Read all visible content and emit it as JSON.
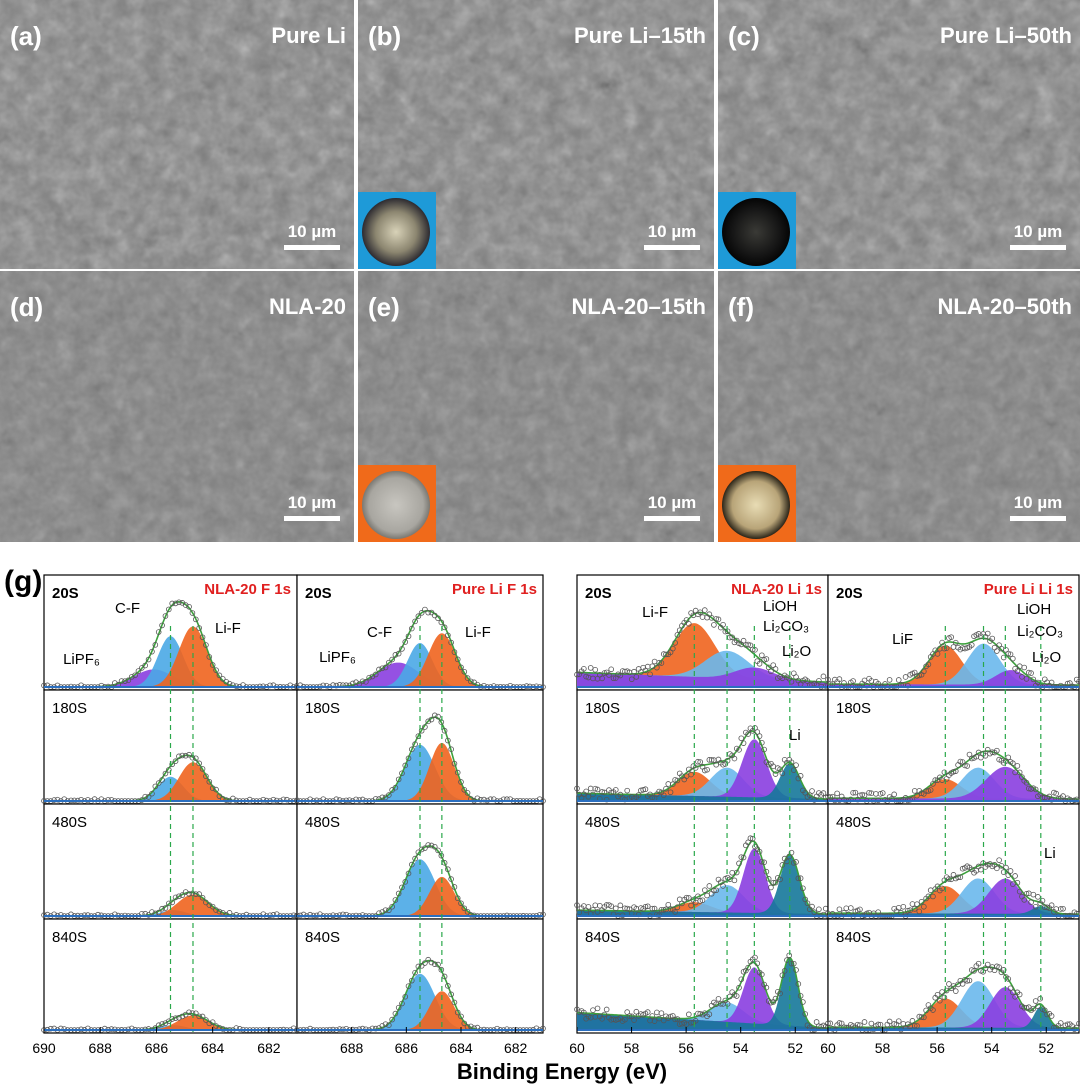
{
  "figure": {
    "panels": [
      {
        "label": "(a)",
        "title": "Pure Li",
        "scale": "10 µm",
        "inset": "none"
      },
      {
        "label": "(b)",
        "title": "Pure Li–15th",
        "scale": "10 µm",
        "inset": "blue"
      },
      {
        "label": "(c)",
        "title": "Pure Li–50th",
        "scale": "10 µm",
        "inset": "blue"
      },
      {
        "label": "(d)",
        "title": "NLA-20",
        "scale": "10 µm",
        "inset": "none"
      },
      {
        "label": "(e)",
        "title": "NLA-20–15th",
        "scale": "10 µm",
        "inset": "orange"
      },
      {
        "label": "(f)",
        "title": "NLA-20–50th",
        "scale": "10 µm",
        "inset": "orange"
      }
    ],
    "g_label": "(g)",
    "xlabel": "Binding Energy (eV)",
    "colors": {
      "lif": "#f0641e",
      "cf": "#4aa8e6",
      "lioh": "#6ab8ec",
      "lipf6": "#8a3ee0",
      "li2o": "#8a3ee0",
      "li": "#15789a",
      "envelope": "#3ca03c",
      "guide": "#2aa84a",
      "title_red": "#e02020",
      "data": "#555555"
    }
  },
  "chart_data": [
    {
      "type": "line",
      "id": "f1s-nla20",
      "title": "NLA-20  F 1s",
      "element": "F 1s",
      "sample": "NLA-20",
      "xlabel": "Binding Energy (eV)",
      "xlim": [
        690,
        681
      ],
      "xticks": [
        690,
        688,
        686,
        684,
        682
      ],
      "show_ticks": true,
      "guides": [
        685.5,
        684.7
      ],
      "annotations": [
        {
          "text": "C-F",
          "peak": "C-F"
        },
        {
          "text": "Li-F",
          "peak": "Li-F"
        },
        {
          "text": "LiPF₆",
          "peak": "LiPF6"
        }
      ],
      "rows": [
        {
          "time": "20S",
          "peaks": [
            {
              "name": "LiPF6",
              "center": 686.1,
              "height": 0.18,
              "sigma": 0.7,
              "color": "#8a3ee0"
            },
            {
              "name": "C-F",
              "center": 685.5,
              "height": 0.52,
              "sigma": 0.45,
              "color": "#4aa8e6"
            },
            {
              "name": "Li-F",
              "center": 684.7,
              "height": 0.62,
              "sigma": 0.5,
              "color": "#f0641e"
            }
          ]
        },
        {
          "time": "180S",
          "peaks": [
            {
              "name": "C-F",
              "center": 685.5,
              "height": 0.25,
              "sigma": 0.45,
              "color": "#4aa8e6"
            },
            {
              "name": "Li-F",
              "center": 684.7,
              "height": 0.4,
              "sigma": 0.5,
              "color": "#f0641e"
            }
          ]
        },
        {
          "time": "480S",
          "peaks": [
            {
              "name": "C-F",
              "center": 685.4,
              "height": 0.06,
              "sigma": 0.45,
              "color": "#4aa8e6"
            },
            {
              "name": "Li-F",
              "center": 684.7,
              "height": 0.22,
              "sigma": 0.55,
              "color": "#f0641e"
            }
          ]
        },
        {
          "time": "840S",
          "peaks": [
            {
              "name": "C-F",
              "center": 685.4,
              "height": 0.05,
              "sigma": 0.45,
              "color": "#4aa8e6"
            },
            {
              "name": "Li-F",
              "center": 684.7,
              "height": 0.15,
              "sigma": 0.55,
              "color": "#f0641e"
            }
          ]
        }
      ]
    },
    {
      "type": "line",
      "id": "f1s-pureli",
      "title": "Pure Li  F 1s",
      "element": "F 1s",
      "sample": "Pure Li",
      "xlabel": "Binding Energy (eV)",
      "xlim": [
        690,
        681
      ],
      "xticks": [
        688,
        686,
        684,
        682
      ],
      "show_ticks": true,
      "guides": [
        685.5,
        684.7
      ],
      "annotations": [
        {
          "text": "C-F",
          "peak": "C-F"
        },
        {
          "text": "Li-F",
          "peak": "Li-F"
        },
        {
          "text": "LiPF₆",
          "peak": "LiPF6"
        }
      ],
      "rows": [
        {
          "time": "20S",
          "peaks": [
            {
              "name": "LiPF6",
              "center": 686.3,
              "height": 0.25,
              "sigma": 0.75,
              "color": "#8a3ee0"
            },
            {
              "name": "C-F",
              "center": 685.5,
              "height": 0.45,
              "sigma": 0.45,
              "color": "#4aa8e6"
            },
            {
              "name": "Li-F",
              "center": 684.7,
              "height": 0.55,
              "sigma": 0.5,
              "color": "#f0641e"
            }
          ]
        },
        {
          "time": "180S",
          "peaks": [
            {
              "name": "C-F",
              "center": 685.5,
              "height": 0.58,
              "sigma": 0.55,
              "color": "#4aa8e6"
            },
            {
              "name": "Li-F",
              "center": 684.7,
              "height": 0.6,
              "sigma": 0.45,
              "color": "#f0641e"
            }
          ]
        },
        {
          "time": "480S",
          "peaks": [
            {
              "name": "C-F",
              "center": 685.5,
              "height": 0.58,
              "sigma": 0.55,
              "color": "#4aa8e6"
            },
            {
              "name": "Li-F",
              "center": 684.7,
              "height": 0.4,
              "sigma": 0.45,
              "color": "#f0641e"
            }
          ]
        },
        {
          "time": "840S",
          "peaks": [
            {
              "name": "C-F",
              "center": 685.5,
              "height": 0.58,
              "sigma": 0.55,
              "color": "#4aa8e6"
            },
            {
              "name": "Li-F",
              "center": 684.7,
              "height": 0.4,
              "sigma": 0.45,
              "color": "#f0641e"
            }
          ]
        }
      ]
    },
    {
      "type": "line",
      "id": "li1s-nla20",
      "title": "NLA-20  Li 1s",
      "element": "Li 1s",
      "sample": "NLA-20",
      "xlabel": "Binding Energy (eV)",
      "xlim": [
        60,
        50.8
      ],
      "xticks": [
        60,
        58,
        56,
        54,
        52
      ],
      "show_ticks": true,
      "guides": [
        55.7,
        54.5,
        53.5,
        52.2
      ],
      "annotations": [
        {
          "text": "Li-F",
          "peak": "LiF"
        },
        {
          "text": "LiOH",
          "peak": "LiOH"
        },
        {
          "text": "Li₂CO₃",
          "peak": "LiOH"
        },
        {
          "text": "Li₂O",
          "peak": "Li2O"
        },
        {
          "text": "Li",
          "peak": "Li"
        }
      ],
      "rows": [
        {
          "time": "20S",
          "baseline": [
            0.15,
            0.05
          ],
          "peaks": [
            {
              "name": "LiF",
              "center": 55.7,
              "height": 0.55,
              "sigma": 0.75,
              "color": "#f0641e"
            },
            {
              "name": "LiOH",
              "center": 54.5,
              "height": 0.28,
              "sigma": 0.8,
              "color": "#6ab8ec"
            },
            {
              "name": "Li2O",
              "center": 53.5,
              "height": 0.12,
              "sigma": 0.7,
              "color": "#8a3ee0"
            }
          ]
        },
        {
          "time": "180S",
          "baseline": [
            0.08,
            0.02
          ],
          "peaks": [
            {
              "name": "LiF",
              "center": 55.7,
              "height": 0.25,
              "sigma": 0.6,
              "color": "#f0641e"
            },
            {
              "name": "LiOH",
              "center": 54.5,
              "height": 0.3,
              "sigma": 0.6,
              "color": "#6ab8ec"
            },
            {
              "name": "Li2O",
              "center": 53.5,
              "height": 0.6,
              "sigma": 0.45,
              "color": "#8a3ee0"
            },
            {
              "name": "Li",
              "center": 52.2,
              "height": 0.36,
              "sigma": 0.35,
              "color": "#15789a"
            }
          ]
        },
        {
          "time": "480S",
          "baseline": [
            0.06,
            0.02
          ],
          "peaks": [
            {
              "name": "LiF",
              "center": 55.7,
              "height": 0.1,
              "sigma": 0.6,
              "color": "#f0641e"
            },
            {
              "name": "LiOH",
              "center": 54.5,
              "height": 0.28,
              "sigma": 0.6,
              "color": "#6ab8ec"
            },
            {
              "name": "Li2O",
              "center": 53.5,
              "height": 0.66,
              "sigma": 0.4,
              "color": "#8a3ee0"
            },
            {
              "name": "Li",
              "center": 52.2,
              "height": 0.6,
              "sigma": 0.35,
              "color": "#15789a"
            }
          ]
        },
        {
          "time": "840S",
          "baseline": [
            0.18,
            0.02
          ],
          "peaks": [
            {
              "name": "LiOH",
              "center": 54.5,
              "height": 0.2,
              "sigma": 0.6,
              "color": "#6ab8ec"
            },
            {
              "name": "Li2O",
              "center": 53.5,
              "height": 0.58,
              "sigma": 0.4,
              "color": "#8a3ee0"
            },
            {
              "name": "Li",
              "center": 52.2,
              "height": 0.7,
              "sigma": 0.3,
              "color": "#15789a"
            }
          ]
        }
      ]
    },
    {
      "type": "line",
      "id": "li1s-pureli",
      "title": "Pure Li  Li 1s",
      "element": "Li 1s",
      "sample": "Pure Li",
      "xlabel": "Binding Energy (eV)",
      "xlim": [
        60,
        50.8
      ],
      "xticks": [
        60,
        58,
        56,
        54,
        52
      ],
      "show_ticks": true,
      "guides": [
        55.7,
        54.3,
        53.5,
        52.2
      ],
      "annotations": [
        {
          "text": "LiF",
          "peak": "LiF"
        },
        {
          "text": "LiOH",
          "peak": "LiOH"
        },
        {
          "text": "Li₂CO₃",
          "peak": "LiOH"
        },
        {
          "text": "Li₂O",
          "peak": "Li2O"
        },
        {
          "text": "Li",
          "peak": "Li"
        }
      ],
      "rows": [
        {
          "time": "20S",
          "baseline": [
            0.03,
            0.02
          ],
          "peaks": [
            {
              "name": "LiF",
              "center": 55.7,
              "height": 0.4,
              "sigma": 0.6,
              "color": "#f0641e"
            },
            {
              "name": "LiOH",
              "center": 54.3,
              "height": 0.42,
              "sigma": 0.6,
              "color": "#6ab8ec"
            },
            {
              "name": "Li2O",
              "center": 53.3,
              "height": 0.15,
              "sigma": 0.55,
              "color": "#8a3ee0"
            }
          ]
        },
        {
          "time": "180S",
          "baseline": [
            0.03,
            0.02
          ],
          "peaks": [
            {
              "name": "LiF",
              "center": 55.7,
              "height": 0.2,
              "sigma": 0.6,
              "color": "#f0641e"
            },
            {
              "name": "LiOH",
              "center": 54.5,
              "height": 0.32,
              "sigma": 0.6,
              "color": "#6ab8ec"
            },
            {
              "name": "Li2O",
              "center": 53.5,
              "height": 0.33,
              "sigma": 0.7,
              "color": "#8a3ee0"
            }
          ]
        },
        {
          "time": "480S",
          "baseline": [
            0.03,
            0.02
          ],
          "peaks": [
            {
              "name": "LiF",
              "center": 55.7,
              "height": 0.28,
              "sigma": 0.6,
              "color": "#f0641e"
            },
            {
              "name": "LiOH",
              "center": 54.5,
              "height": 0.36,
              "sigma": 0.6,
              "color": "#6ab8ec"
            },
            {
              "name": "Li2O",
              "center": 53.5,
              "height": 0.36,
              "sigma": 0.6,
              "color": "#8a3ee0"
            },
            {
              "name": "Li",
              "center": 52.2,
              "height": 0.08,
              "sigma": 0.3,
              "color": "#15789a"
            }
          ]
        },
        {
          "time": "840S",
          "baseline": [
            0.03,
            0.02
          ],
          "peaks": [
            {
              "name": "LiF",
              "center": 55.7,
              "height": 0.3,
              "sigma": 0.6,
              "color": "#f0641e"
            },
            {
              "name": "LiOH",
              "center": 54.5,
              "height": 0.48,
              "sigma": 0.6,
              "color": "#6ab8ec"
            },
            {
              "name": "Li2O",
              "center": 53.5,
              "height": 0.42,
              "sigma": 0.55,
              "color": "#8a3ee0"
            },
            {
              "name": "Li",
              "center": 52.2,
              "height": 0.22,
              "sigma": 0.25,
              "color": "#15789a"
            }
          ]
        }
      ]
    }
  ]
}
